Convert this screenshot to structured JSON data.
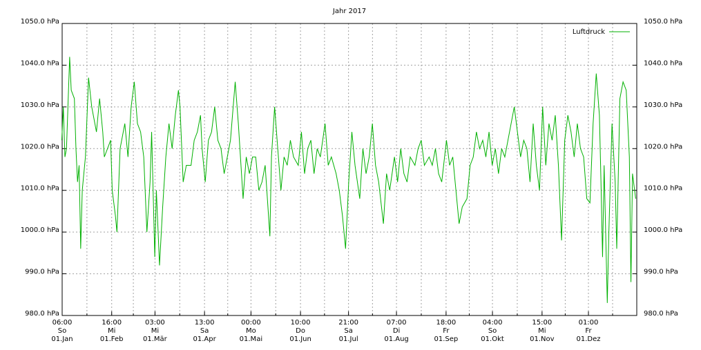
{
  "chart_data": {
    "type": "line",
    "title": "Jahr 2017",
    "series": [
      {
        "name": "Luftdruck",
        "color": "#00b000",
        "x": [
          0,
          1,
          2,
          3,
          5,
          6,
          8,
          9,
          10,
          11,
          12,
          13,
          15,
          17,
          19,
          21,
          22,
          24,
          26,
          27,
          29,
          31,
          32,
          34,
          35,
          37,
          40,
          42,
          44,
          46,
          48,
          50,
          52,
          54,
          56,
          57,
          59,
          60,
          62,
          64,
          66,
          68,
          70,
          72,
          74,
          75,
          77,
          79,
          82,
          84,
          86,
          88,
          89,
          91,
          93,
          95,
          97,
          99,
          101,
          103,
          105,
          107,
          110,
          112,
          115,
          117,
          119,
          121,
          123,
          125,
          127,
          129,
          132,
          133,
          135,
          137,
          139,
          141,
          143,
          145,
          147,
          150,
          152,
          154,
          156,
          158,
          160,
          162,
          164,
          167,
          169,
          171,
          174,
          176,
          178,
          180,
          182,
          184,
          186,
          189,
          191,
          193,
          195,
          197,
          199,
          201,
          204,
          206,
          208,
          211,
          213,
          215,
          217,
          219,
          221,
          224,
          226,
          228,
          230,
          233,
          235,
          237,
          239,
          241,
          244,
          246,
          248,
          250,
          252,
          254,
          257,
          259,
          261,
          263,
          265,
          267,
          269,
          271,
          273,
          275,
          277,
          279,
          281,
          283,
          285,
          287,
          289,
          291,
          293,
          295,
          297,
          299,
          301,
          303,
          305,
          307,
          309,
          311,
          313,
          315,
          317,
          319,
          321,
          323,
          325,
          327,
          329,
          331,
          333,
          335,
          337,
          339,
          341,
          342,
          343,
          344,
          346,
          347,
          349,
          351,
          352,
          354,
          356,
          358,
          360,
          361,
          362,
          364
        ],
        "values": [
          1022,
          1030,
          1018,
          1020,
          1042,
          1034,
          1032,
          1020,
          1012,
          1016,
          996,
          1010,
          1018,
          1037,
          1030,
          1026,
          1024,
          1032,
          1024,
          1018,
          1020,
          1022,
          1010,
          1004,
          1000,
          1020,
          1026,
          1018,
          1030,
          1036,
          1026,
          1024,
          1018,
          1000,
          1012,
          1024,
          994,
          1010,
          992,
          1006,
          1018,
          1026,
          1020,
          1028,
          1034,
          1030,
          1012,
          1016,
          1016,
          1022,
          1024,
          1028,
          1020,
          1012,
          1022,
          1024,
          1030,
          1022,
          1020,
          1014,
          1018,
          1022,
          1036,
          1026,
          1008,
          1018,
          1014,
          1018,
          1018,
          1010,
          1012,
          1016,
          999,
          1018,
          1030,
          1020,
          1010,
          1018,
          1016,
          1022,
          1018,
          1016,
          1024,
          1014,
          1020,
          1022,
          1014,
          1020,
          1018,
          1026,
          1016,
          1018,
          1014,
          1010,
          1004,
          996,
          1012,
          1024,
          1016,
          1008,
          1020,
          1014,
          1018,
          1026,
          1016,
          1012,
          1002,
          1014,
          1010,
          1018,
          1012,
          1020,
          1014,
          1012,
          1018,
          1016,
          1020,
          1022,
          1016,
          1018,
          1016,
          1020,
          1014,
          1012,
          1022,
          1016,
          1018,
          1010,
          1002,
          1006,
          1008,
          1016,
          1018,
          1024,
          1020,
          1022,
          1018,
          1024,
          1016,
          1020,
          1014,
          1020,
          1018,
          1022,
          1026,
          1030,
          1024,
          1018,
          1022,
          1020,
          1012,
          1026,
          1016,
          1010,
          1030,
          1016,
          1026,
          1022,
          1028,
          1016,
          998,
          1022,
          1028,
          1024,
          1018,
          1026,
          1020,
          1018,
          1008,
          1007,
          1026,
          1038,
          1028,
          1012,
          994,
          1016,
          983,
          1000,
          1026,
          1012,
          996,
          1032,
          1036,
          1034,
          1018,
          988,
          1014,
          1008
        ]
      }
    ],
    "xlim": [
      0.25,
      364.7
    ],
    "xticks": [
      {
        "value": 0.25,
        "label": "06:00\nSo\n01.Jan"
      },
      {
        "value": 31.67,
        "label": "16:00\nMi\n01.Feb"
      },
      {
        "value": 59.125,
        "label": "03:00\nMi\n01.Mär"
      },
      {
        "value": 90.54,
        "label": "13:00\nSa\n01.Apr"
      },
      {
        "value": 120,
        "label": "00:00\nMo\n01.Mai"
      },
      {
        "value": 151.42,
        "label": "10:00\nDo\n01.Jun"
      },
      {
        "value": 181.875,
        "label": "21:00\nSa\n01.Jul"
      },
      {
        "value": 212.29,
        "label": "07:00\nDi\n01.Aug"
      },
      {
        "value": 243.75,
        "label": "18:00\nFr\n01.Sep"
      },
      {
        "value": 273.17,
        "label": "04:00\nSo\n01.Okt"
      },
      {
        "value": 304.625,
        "label": "15:00\nMi\n01.Nov"
      },
      {
        "value": 334.04,
        "label": "01:00\nFr\n01.Dez"
      }
    ],
    "xminorticks": [
      15.96,
      45.4,
      74.83,
      105.27,
      135.71,
      166.65,
      197.08,
      228.02,
      258.46,
      288.9,
      319.33,
      349.37
    ],
    "ylim": [
      980,
      1050
    ],
    "yticks": [
      {
        "value": 980,
        "label": "980.0 hPa"
      },
      {
        "value": 990,
        "label": "990.0 hPa"
      },
      {
        "value": 1000,
        "label": "1000.0 hPa"
      },
      {
        "value": 1010,
        "label": "1010.0 hPa"
      },
      {
        "value": 1020,
        "label": "1020.0 hPa"
      },
      {
        "value": 1030,
        "label": "1030.0 hPa"
      },
      {
        "value": 1040,
        "label": "1040.0 hPa"
      },
      {
        "value": 1050,
        "label": "1050.0 hPa"
      }
    ],
    "y2lim": [
      980,
      1050
    ],
    "y2ticks": [
      {
        "value": 980,
        "label": "980.0 hPa"
      },
      {
        "value": 990,
        "label": "990.0 hPa"
      },
      {
        "value": 1000,
        "label": "1000.0 hPa"
      },
      {
        "value": 1010,
        "label": "1010.0 hPa"
      },
      {
        "value": 1020,
        "label": "1020.0 hPa"
      },
      {
        "value": 1030,
        "label": "1030.0 hPa"
      },
      {
        "value": 1040,
        "label": "1040.0 hPa"
      },
      {
        "value": 1050,
        "label": "1050.0 hPa"
      }
    ],
    "grid": true,
    "legend": "top-right"
  }
}
